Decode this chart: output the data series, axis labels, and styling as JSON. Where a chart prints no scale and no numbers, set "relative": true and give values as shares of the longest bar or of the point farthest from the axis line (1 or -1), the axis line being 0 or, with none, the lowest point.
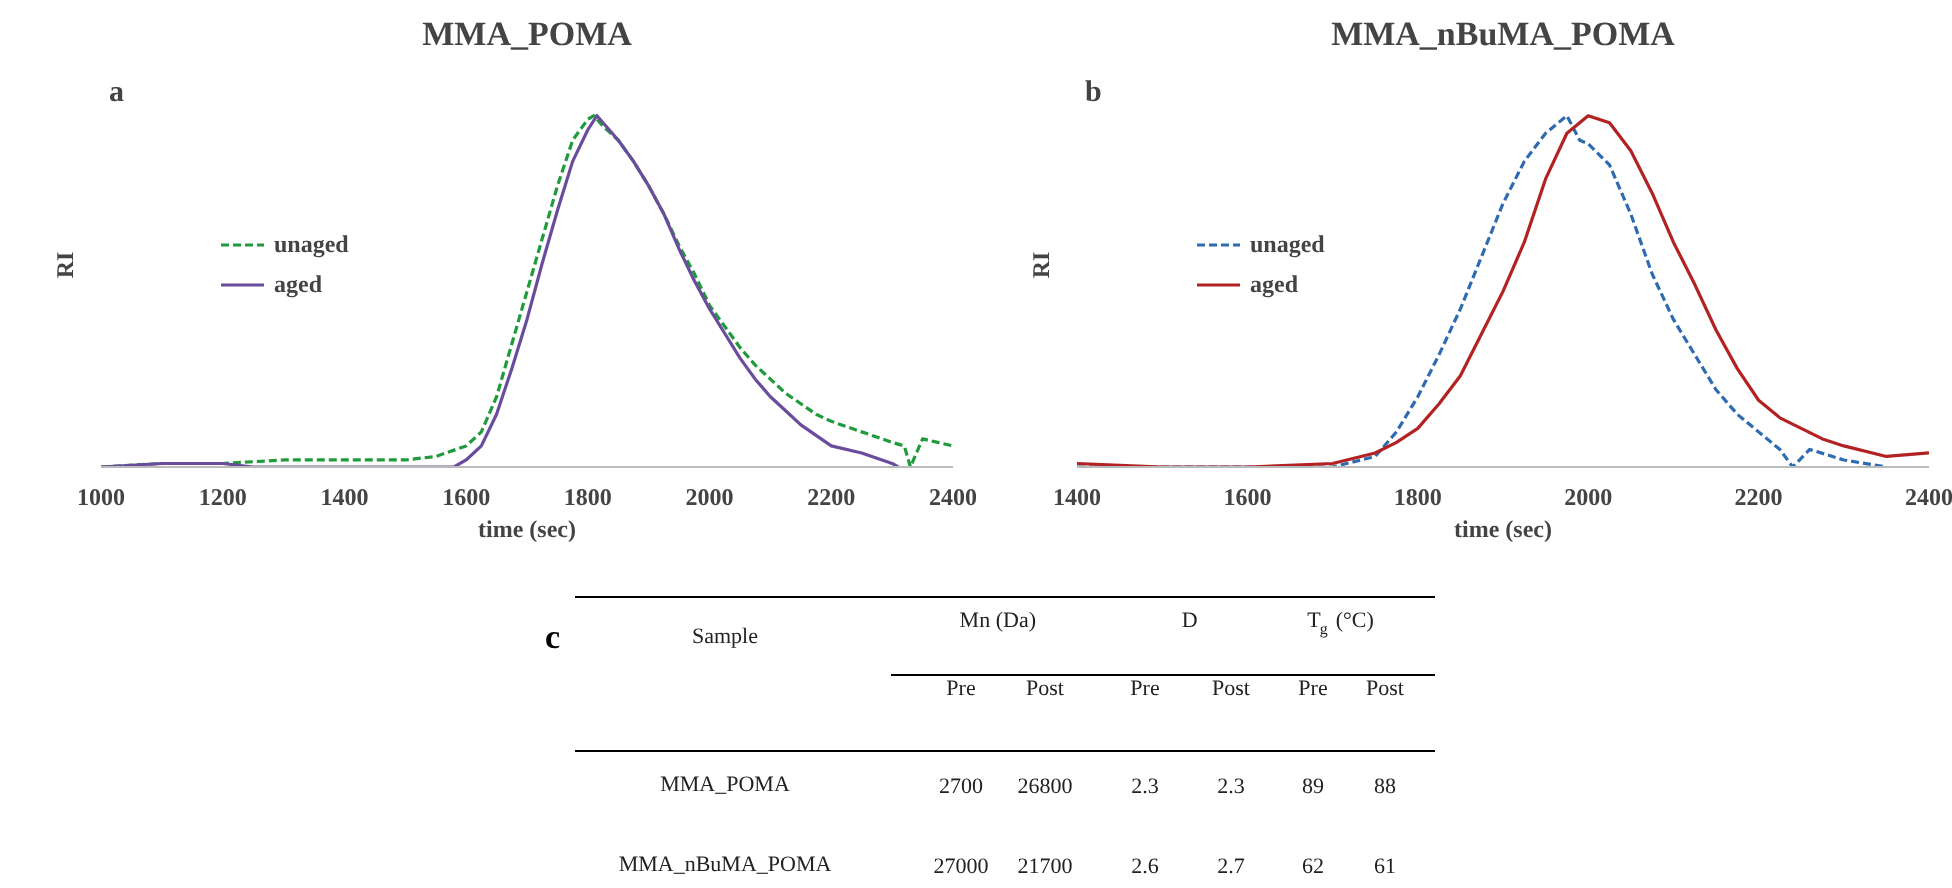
{
  "chart_data": [
    {
      "type": "line",
      "title": "MMA_POMA",
      "annotations": [
        "a"
      ],
      "xlabel": "time (sec)",
      "ylabel": "RI",
      "relative": true,
      "xlim": [
        1000,
        2400
      ],
      "xticks": [
        1000,
        1200,
        1400,
        1600,
        1800,
        2000,
        2200,
        2400
      ],
      "grid": false,
      "legend": "center left",
      "series": [
        {
          "name": "unaged",
          "color": "#1f9a3c",
          "line_style": "dashed",
          "x": [
            1000,
            1100,
            1200,
            1300,
            1400,
            1500,
            1550,
            1600,
            1625,
            1650,
            1675,
            1700,
            1725,
            1750,
            1775,
            1800,
            1810,
            1825,
            1850,
            1875,
            1900,
            1925,
            1950,
            1975,
            2000,
            2025,
            2050,
            2075,
            2100,
            2125,
            2150,
            2175,
            2200,
            2250,
            2300,
            2320,
            2330,
            2350,
            2375,
            2400
          ],
          "values": [
            0.0,
            0.01,
            0.01,
            0.02,
            0.02,
            0.02,
            0.03,
            0.06,
            0.1,
            0.2,
            0.35,
            0.5,
            0.65,
            0.8,
            0.93,
            0.99,
            1.0,
            0.97,
            0.93,
            0.87,
            0.8,
            0.72,
            0.63,
            0.55,
            0.46,
            0.4,
            0.34,
            0.29,
            0.25,
            0.21,
            0.18,
            0.15,
            0.13,
            0.1,
            0.07,
            0.06,
            0.0,
            0.08,
            0.07,
            0.06
          ]
        },
        {
          "name": "aged",
          "color": "#6a4c9c",
          "line_style": "solid",
          "x": [
            1000,
            1100,
            1200,
            1250,
            1300,
            1400,
            1500,
            1580,
            1600,
            1625,
            1650,
            1675,
            1700,
            1725,
            1750,
            1775,
            1800,
            1815,
            1825,
            1850,
            1875,
            1900,
            1925,
            1950,
            1975,
            2000,
            2025,
            2050,
            2075,
            2100,
            2125,
            2150,
            2175,
            2200,
            2250,
            2300,
            2310
          ],
          "values": [
            0.0,
            0.01,
            0.01,
            0.0,
            0.0,
            0.0,
            0.0,
            0.0,
            0.02,
            0.06,
            0.15,
            0.28,
            0.42,
            0.58,
            0.73,
            0.87,
            0.96,
            1.0,
            0.98,
            0.93,
            0.87,
            0.8,
            0.72,
            0.62,
            0.53,
            0.45,
            0.38,
            0.31,
            0.25,
            0.2,
            0.16,
            0.12,
            0.09,
            0.06,
            0.04,
            0.01,
            0.0
          ]
        }
      ]
    },
    {
      "type": "line",
      "title": "MMA_nBuMA_POMA",
      "annotations": [
        "b"
      ],
      "xlabel": "time (sec)",
      "ylabel": "RI",
      "relative": true,
      "xlim": [
        1400,
        2400
      ],
      "xticks": [
        1400,
        1600,
        1800,
        2000,
        2200,
        2400
      ],
      "grid": false,
      "legend": "center left",
      "series": [
        {
          "name": "unaged",
          "color": "#2e6bb0",
          "line_style": "dashed",
          "x": [
            1400,
            1600,
            1700,
            1750,
            1775,
            1800,
            1825,
            1850,
            1875,
            1900,
            1925,
            1950,
            1975,
            1990,
            2000,
            2025,
            2050,
            2075,
            2100,
            2125,
            2150,
            2175,
            2200,
            2225,
            2240,
            2260,
            2300,
            2350
          ],
          "values": [
            0.0,
            0.0,
            0.0,
            0.03,
            0.1,
            0.2,
            0.32,
            0.45,
            0.6,
            0.75,
            0.87,
            0.95,
            1.0,
            0.93,
            0.92,
            0.86,
            0.72,
            0.55,
            0.42,
            0.32,
            0.22,
            0.15,
            0.1,
            0.05,
            0.0,
            0.05,
            0.02,
            0.0
          ]
        },
        {
          "name": "aged",
          "color": "#b22222",
          "line_style": "solid",
          "x": [
            1400,
            1500,
            1600,
            1700,
            1750,
            1775,
            1800,
            1825,
            1850,
            1875,
            1900,
            1925,
            1950,
            1975,
            2000,
            2025,
            2050,
            2075,
            2100,
            2125,
            2150,
            2175,
            2200,
            2225,
            2250,
            2275,
            2300,
            2350,
            2400
          ],
          "values": [
            0.01,
            0.0,
            0.0,
            0.01,
            0.04,
            0.07,
            0.11,
            0.18,
            0.26,
            0.38,
            0.5,
            0.64,
            0.82,
            0.95,
            1.0,
            0.98,
            0.9,
            0.78,
            0.64,
            0.52,
            0.39,
            0.28,
            0.19,
            0.14,
            0.11,
            0.08,
            0.06,
            0.03,
            0.04
          ]
        }
      ]
    },
    {
      "type": "other",
      "annotations": [
        "c",
        "Sample",
        "Mn (Da)",
        "D",
        "T$_{g}$ (°C)"
      ],
      "categories": [
        "MMA_POMA",
        "MMA_nBuMA_POMA"
      ],
      "data_labels": true,
      "series": [
        {
          "name": "Pre",
          "values": [
            2700,
            27000
          ]
        },
        {
          "name": "Post",
          "values": [
            26800,
            21700
          ]
        },
        {
          "name": "Pre",
          "values": [
            2.3,
            2.6
          ]
        },
        {
          "name": "Post",
          "values": [
            2.3,
            2.7
          ]
        },
        {
          "name": "Pre",
          "values": [
            89,
            62
          ]
        },
        {
          "name": "Post",
          "values": [
            88,
            61
          ]
        }
      ]
    }
  ]
}
